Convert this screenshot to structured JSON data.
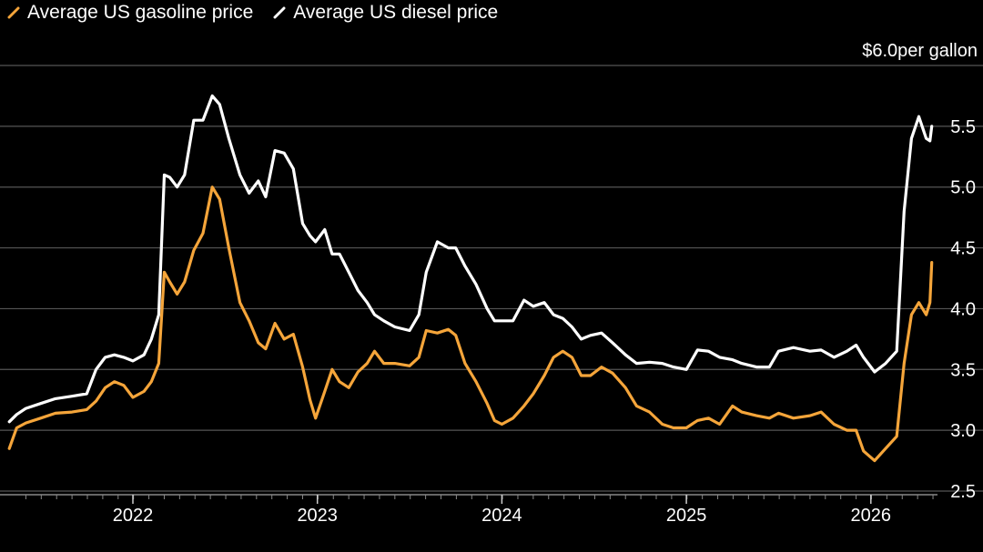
{
  "chart_data": {
    "type": "line",
    "title": "",
    "xlabel": "",
    "ylabel": "",
    "unit_label": "$6.0per gallon",
    "ylim": [
      2.5,
      6.0
    ],
    "yticks": [
      "2.5",
      "3.0",
      "3.5",
      "4.0",
      "4.5",
      "5.0",
      "5.5"
    ],
    "xticks": [
      {
        "label": "2022",
        "x": 2022.0
      },
      {
        "label": "2023",
        "x": 2023.0
      },
      {
        "label": "2024",
        "x": 2024.0
      },
      {
        "label": "2025",
        "x": 2025.0
      },
      {
        "label": "2026",
        "x": 2026.0
      }
    ],
    "xlim": [
      2021.3,
      2026.6
    ],
    "grid": true,
    "legend_position": "top-left",
    "colors": {
      "gasoline": "#f5a53a",
      "diesel": "#ffffff",
      "grid": "#555555",
      "background": "#000000",
      "axis": "#888888"
    },
    "series": [
      {
        "name": "Average US gasoline price",
        "color": "#f5a53a",
        "points": [
          [
            2021.33,
            2.85
          ],
          [
            2021.37,
            3.02
          ],
          [
            2021.42,
            3.06
          ],
          [
            2021.5,
            3.1
          ],
          [
            2021.58,
            3.14
          ],
          [
            2021.67,
            3.15
          ],
          [
            2021.75,
            3.17
          ],
          [
            2021.8,
            3.24
          ],
          [
            2021.85,
            3.35
          ],
          [
            2021.9,
            3.4
          ],
          [
            2021.95,
            3.37
          ],
          [
            2022.0,
            3.27
          ],
          [
            2022.06,
            3.32
          ],
          [
            2022.1,
            3.4
          ],
          [
            2022.14,
            3.55
          ],
          [
            2022.17,
            4.3
          ],
          [
            2022.2,
            4.22
          ],
          [
            2022.24,
            4.12
          ],
          [
            2022.28,
            4.22
          ],
          [
            2022.33,
            4.48
          ],
          [
            2022.38,
            4.62
          ],
          [
            2022.43,
            5.0
          ],
          [
            2022.47,
            4.9
          ],
          [
            2022.52,
            4.5
          ],
          [
            2022.58,
            4.05
          ],
          [
            2022.63,
            3.9
          ],
          [
            2022.68,
            3.72
          ],
          [
            2022.72,
            3.67
          ],
          [
            2022.77,
            3.88
          ],
          [
            2022.82,
            3.75
          ],
          [
            2022.87,
            3.79
          ],
          [
            2022.92,
            3.52
          ],
          [
            2022.96,
            3.25
          ],
          [
            2022.99,
            3.1
          ],
          [
            2023.04,
            3.32
          ],
          [
            2023.08,
            3.5
          ],
          [
            2023.12,
            3.4
          ],
          [
            2023.17,
            3.35
          ],
          [
            2023.22,
            3.48
          ],
          [
            2023.27,
            3.55
          ],
          [
            2023.31,
            3.65
          ],
          [
            2023.36,
            3.55
          ],
          [
            2023.42,
            3.55
          ],
          [
            2023.5,
            3.53
          ],
          [
            2023.55,
            3.6
          ],
          [
            2023.59,
            3.82
          ],
          [
            2023.65,
            3.8
          ],
          [
            2023.71,
            3.83
          ],
          [
            2023.75,
            3.78
          ],
          [
            2023.8,
            3.55
          ],
          [
            2023.86,
            3.4
          ],
          [
            2023.92,
            3.22
          ],
          [
            2023.96,
            3.08
          ],
          [
            2024.0,
            3.05
          ],
          [
            2024.06,
            3.1
          ],
          [
            2024.12,
            3.2
          ],
          [
            2024.17,
            3.3
          ],
          [
            2024.23,
            3.45
          ],
          [
            2024.28,
            3.6
          ],
          [
            2024.33,
            3.65
          ],
          [
            2024.38,
            3.6
          ],
          [
            2024.43,
            3.45
          ],
          [
            2024.48,
            3.45
          ],
          [
            2024.54,
            3.52
          ],
          [
            2024.6,
            3.47
          ],
          [
            2024.67,
            3.35
          ],
          [
            2024.73,
            3.2
          ],
          [
            2024.8,
            3.15
          ],
          [
            2024.87,
            3.05
          ],
          [
            2024.93,
            3.02
          ],
          [
            2025.0,
            3.02
          ],
          [
            2025.06,
            3.08
          ],
          [
            2025.12,
            3.1
          ],
          [
            2025.18,
            3.05
          ],
          [
            2025.25,
            3.2
          ],
          [
            2025.3,
            3.15
          ],
          [
            2025.38,
            3.12
          ],
          [
            2025.45,
            3.1
          ],
          [
            2025.5,
            3.14
          ],
          [
            2025.58,
            3.1
          ],
          [
            2025.67,
            3.12
          ],
          [
            2025.73,
            3.15
          ],
          [
            2025.8,
            3.05
          ],
          [
            2025.87,
            3.0
          ],
          [
            2025.92,
            3.0
          ],
          [
            2025.96,
            2.83
          ],
          [
            2026.02,
            2.75
          ],
          [
            2026.08,
            2.85
          ],
          [
            2026.14,
            2.95
          ],
          [
            2026.18,
            3.55
          ],
          [
            2026.22,
            3.95
          ],
          [
            2026.26,
            4.05
          ],
          [
            2026.3,
            3.95
          ],
          [
            2026.32,
            4.05
          ],
          [
            2026.33,
            4.38
          ]
        ]
      },
      {
        "name": "Average US diesel price",
        "color": "#ffffff",
        "points": [
          [
            2021.33,
            3.07
          ],
          [
            2021.37,
            3.13
          ],
          [
            2021.42,
            3.18
          ],
          [
            2021.5,
            3.22
          ],
          [
            2021.58,
            3.26
          ],
          [
            2021.67,
            3.28
          ],
          [
            2021.75,
            3.3
          ],
          [
            2021.8,
            3.5
          ],
          [
            2021.85,
            3.6
          ],
          [
            2021.9,
            3.62
          ],
          [
            2021.95,
            3.6
          ],
          [
            2022.0,
            3.57
          ],
          [
            2022.06,
            3.62
          ],
          [
            2022.1,
            3.75
          ],
          [
            2022.14,
            3.95
          ],
          [
            2022.17,
            5.1
          ],
          [
            2022.2,
            5.08
          ],
          [
            2022.24,
            5.0
          ],
          [
            2022.28,
            5.1
          ],
          [
            2022.33,
            5.55
          ],
          [
            2022.38,
            5.55
          ],
          [
            2022.43,
            5.75
          ],
          [
            2022.47,
            5.68
          ],
          [
            2022.52,
            5.4
          ],
          [
            2022.58,
            5.1
          ],
          [
            2022.63,
            4.95
          ],
          [
            2022.68,
            5.05
          ],
          [
            2022.72,
            4.92
          ],
          [
            2022.77,
            5.3
          ],
          [
            2022.82,
            5.28
          ],
          [
            2022.87,
            5.15
          ],
          [
            2022.92,
            4.7
          ],
          [
            2022.96,
            4.6
          ],
          [
            2022.99,
            4.55
          ],
          [
            2023.04,
            4.65
          ],
          [
            2023.08,
            4.45
          ],
          [
            2023.12,
            4.45
          ],
          [
            2023.17,
            4.3
          ],
          [
            2023.22,
            4.15
          ],
          [
            2023.27,
            4.05
          ],
          [
            2023.31,
            3.95
          ],
          [
            2023.36,
            3.9
          ],
          [
            2023.42,
            3.85
          ],
          [
            2023.5,
            3.82
          ],
          [
            2023.55,
            3.95
          ],
          [
            2023.59,
            4.3
          ],
          [
            2023.65,
            4.55
          ],
          [
            2023.71,
            4.5
          ],
          [
            2023.75,
            4.5
          ],
          [
            2023.8,
            4.35
          ],
          [
            2023.86,
            4.2
          ],
          [
            2023.92,
            4.0
          ],
          [
            2023.96,
            3.9
          ],
          [
            2024.0,
            3.9
          ],
          [
            2024.06,
            3.9
          ],
          [
            2024.12,
            4.07
          ],
          [
            2024.17,
            4.02
          ],
          [
            2024.23,
            4.05
          ],
          [
            2024.28,
            3.95
          ],
          [
            2024.33,
            3.92
          ],
          [
            2024.38,
            3.85
          ],
          [
            2024.43,
            3.75
          ],
          [
            2024.48,
            3.78
          ],
          [
            2024.54,
            3.8
          ],
          [
            2024.6,
            3.72
          ],
          [
            2024.67,
            3.62
          ],
          [
            2024.73,
            3.55
          ],
          [
            2024.8,
            3.56
          ],
          [
            2024.87,
            3.55
          ],
          [
            2024.93,
            3.52
          ],
          [
            2025.0,
            3.5
          ],
          [
            2025.06,
            3.66
          ],
          [
            2025.12,
            3.65
          ],
          [
            2025.18,
            3.6
          ],
          [
            2025.25,
            3.58
          ],
          [
            2025.3,
            3.55
          ],
          [
            2025.38,
            3.52
          ],
          [
            2025.45,
            3.52
          ],
          [
            2025.5,
            3.65
          ],
          [
            2025.58,
            3.68
          ],
          [
            2025.67,
            3.65
          ],
          [
            2025.73,
            3.66
          ],
          [
            2025.8,
            3.6
          ],
          [
            2025.87,
            3.65
          ],
          [
            2025.92,
            3.7
          ],
          [
            2025.96,
            3.6
          ],
          [
            2026.02,
            3.48
          ],
          [
            2026.08,
            3.55
          ],
          [
            2026.14,
            3.65
          ],
          [
            2026.18,
            4.8
          ],
          [
            2026.22,
            5.4
          ],
          [
            2026.26,
            5.58
          ],
          [
            2026.3,
            5.4
          ],
          [
            2026.32,
            5.38
          ],
          [
            2026.33,
            5.5
          ]
        ]
      }
    ]
  }
}
